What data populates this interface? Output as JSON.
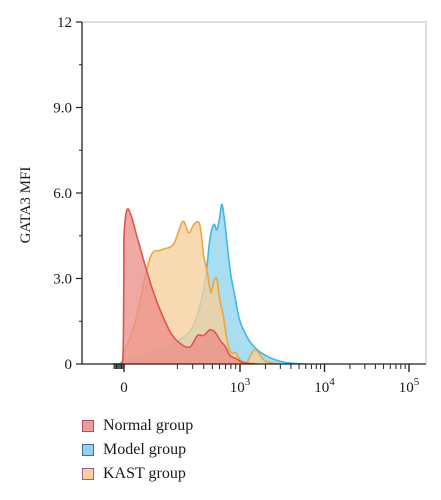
{
  "chart_data": {
    "type": "area",
    "title": "",
    "xlabel": "",
    "ylabel": "GATA3 MFI",
    "ylim": [
      0,
      12
    ],
    "xscale": "biexponential",
    "xlim": [
      -900,
      160000
    ],
    "grid": false,
    "legend_position": "bottom-left",
    "y_ticks": [
      {
        "value": 0,
        "label": "0"
      },
      {
        "value": 3,
        "label": "3.0"
      },
      {
        "value": 6,
        "label": "6.0"
      },
      {
        "value": 9,
        "label": "9.0"
      },
      {
        "value": 12,
        "label": "12"
      }
    ],
    "x_ticks": [
      {
        "value": 0,
        "base": "0",
        "exp": ""
      },
      {
        "value": 1000,
        "base": "10",
        "exp": "3"
      },
      {
        "value": 10000,
        "base": "10",
        "exp": "4"
      },
      {
        "value": 100000,
        "base": "10",
        "exp": "5"
      }
    ],
    "series": [
      {
        "name": "Model group",
        "fill": "#8fd3ee",
        "stroke": "#3fb8e6",
        "x": [
          -900,
          -300,
          0,
          100,
          200,
          300,
          380,
          430,
          470,
          520,
          560,
          600,
          640,
          690,
          740,
          800,
          880,
          980,
          1100,
          1300,
          1600,
          2000,
          2600,
          3500,
          4500,
          6000
        ],
        "y": [
          0,
          0,
          0.1,
          0.4,
          0.8,
          1.3,
          2.3,
          3.3,
          4.4,
          4.9,
          4.7,
          5.1,
          5.6,
          4.9,
          4.0,
          3.1,
          2.4,
          1.6,
          1.2,
          0.8,
          0.5,
          0.3,
          0.15,
          0.05,
          0.02,
          0
        ]
      },
      {
        "name": "KAST group",
        "fill": "#f6cf9c",
        "stroke": "#f0a53c",
        "x": [
          -900,
          -300,
          -100,
          0,
          40,
          90,
          130,
          180,
          230,
          270,
          310,
          360,
          400,
          440,
          480,
          520,
          560,
          600,
          660,
          720,
          800,
          900,
          1000,
          1200,
          1500,
          2000,
          3000
        ],
        "y": [
          0,
          0,
          0.1,
          0.4,
          1.5,
          3.7,
          4.0,
          4.2,
          5.0,
          4.6,
          4.9,
          4.9,
          3.8,
          3.2,
          2.5,
          2.9,
          3.0,
          2.3,
          1.7,
          0.9,
          0.4,
          0.4,
          0.15,
          0.05,
          0.5,
          0.1,
          0
        ]
      },
      {
        "name": "Normal group",
        "fill": "#ec8f8a",
        "stroke": "#e2544e",
        "x": [
          -900,
          -300,
          -150,
          -80,
          -40,
          -10,
          0,
          10,
          25,
          50,
          100,
          160,
          220,
          280,
          340,
          400,
          470,
          540,
          620,
          700,
          780,
          900,
          1000,
          1100,
          1300,
          1600
        ],
        "y": [
          0,
          0,
          0.05,
          0.3,
          1.3,
          3.5,
          4.5,
          5.4,
          5.2,
          4.3,
          2.6,
          1.2,
          0.7,
          0.6,
          1.0,
          1.0,
          1.2,
          1.1,
          0.8,
          0.6,
          0.3,
          0.2,
          0.1,
          0.05,
          0.02,
          0
        ]
      }
    ]
  },
  "legend": {
    "items": [
      {
        "label": "Normal group",
        "fill": "#ec9d97",
        "border": "#b3496b"
      },
      {
        "label": "Model group",
        "fill": "#94d2ea",
        "border": "#3d6fa6"
      },
      {
        "label": "KAST group",
        "fill": "#f7cfa1",
        "border": "#9b5c8f"
      }
    ]
  }
}
